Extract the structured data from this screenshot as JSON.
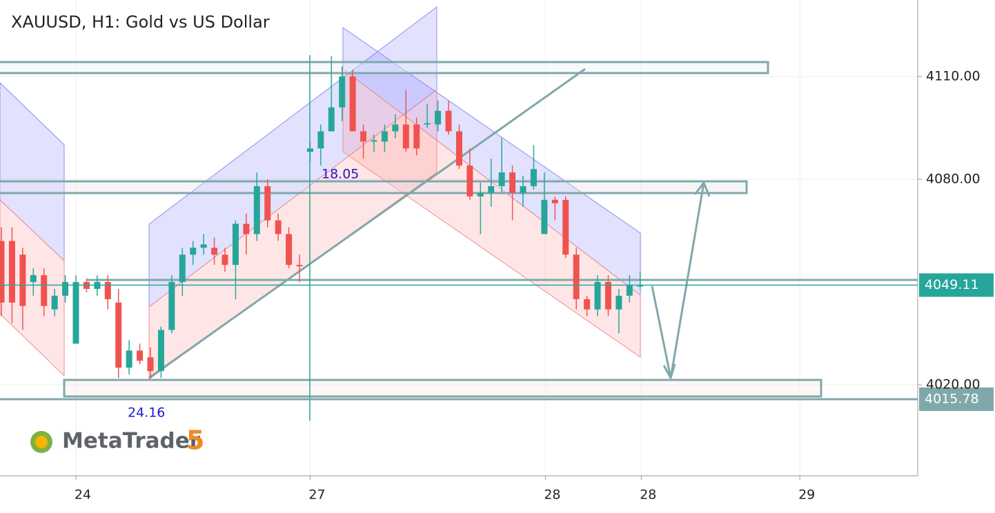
{
  "chart_data": {
    "type": "candlestick",
    "title": "XAUUSD, H1: Gold vs US Dollar",
    "open": [
      4062,
      4062,
      4058,
      4050,
      4052,
      4042,
      4046,
      4032,
      4050,
      4048,
      4050,
      4044,
      4025,
      4030,
      4028,
      4024,
      4036,
      4050,
      4058,
      4060,
      4060,
      4058,
      4055,
      4067,
      4064,
      4078,
      4068,
      4064,
      4055,
      4088,
      4089,
      4094,
      4101,
      4110,
      4094,
      4091,
      4091,
      4094,
      4096,
      4096,
      4096,
      4096,
      4100,
      4094,
      4084,
      4075,
      4076,
      4078,
      4082,
      4076,
      4078,
      4064,
      4074,
      4074,
      4058,
      4045,
      4042,
      4050,
      4042,
      4046,
      4049
    ],
    "high": [
      4066,
      4066,
      4060,
      4054,
      4054,
      4048,
      4052,
      4052,
      4051,
      4052,
      4052,
      4048,
      4033,
      4032,
      4031,
      4037,
      4052,
      4060,
      4062,
      4064,
      4063,
      4060,
      4068,
      4070,
      4082,
      4080,
      4070,
      4066,
      4058,
      4091,
      4096,
      4116,
      4113,
      4112,
      4096,
      4093,
      4096,
      4099,
      4106,
      4098,
      4102,
      4103,
      4103,
      4096,
      4089,
      4079,
      4086,
      4092,
      4084,
      4081,
      4090,
      4082,
      4075,
      4075,
      4060,
      4046,
      4052,
      4052,
      4048,
      4052,
      4053
    ],
    "low": [
      4040,
      4038,
      4036,
      4046,
      4040,
      4040,
      4044,
      4032,
      4047,
      4046,
      4042,
      4022,
      4023,
      4026,
      4022,
      4022,
      4035,
      4046,
      4055,
      4058,
      4055,
      4053,
      4045,
      4058,
      4062,
      4066,
      4062,
      4054,
      4050,
      4085,
      4084,
      4094,
      4097,
      4094,
      4086,
      4088,
      4088,
      4092,
      4088,
      4087,
      4095,
      4094,
      4093,
      4083,
      4074,
      4064,
      4072,
      4076,
      4068,
      4072,
      4077,
      4064,
      4068,
      4057,
      4042,
      4040,
      4040,
      4040,
      4035,
      4044,
      4048
    ],
    "close": [
      4044,
      4044,
      4043,
      4052,
      4043,
      4046,
      4050,
      4050,
      4048,
      4050,
      4045,
      4025,
      4030,
      4027,
      4024,
      4036,
      4050,
      4058,
      4060,
      4061,
      4058,
      4055,
      4067,
      4064,
      4078,
      4068,
      4064,
      4055,
      4054.6,
      4089,
      4094,
      4101,
      4110,
      4094,
      4091,
      4091.4,
      4094,
      4096,
      4089,
      4089,
      4096.4,
      4100,
      4094,
      4084,
      4075,
      4076,
      4078,
      4082,
      4076,
      4078,
      4083,
      4074,
      4073,
      4058,
      4045,
      4042,
      4050,
      4042,
      4046,
      4049,
      4049.1
    ],
    "up_color": "#26a69a",
    "down_color": "#ef5350",
    "ylim": [
      3993.43,
      4132.35
    ],
    "yticks": [
      {
        "value": 4020,
        "label": "4020.00"
      },
      {
        "value": 4080,
        "label": "4080.00"
      },
      {
        "value": 4110,
        "label": "4110.00"
      }
    ],
    "xlim": [
      -0.13,
      86.07
    ],
    "xticks": [
      {
        "value": 7.0,
        "label": "24"
      },
      {
        "value": 29.0,
        "label": "27"
      },
      {
        "value": 51.1,
        "label": "28"
      },
      {
        "value": 60.1,
        "label": "28"
      },
      {
        "value": 75.0,
        "label": "29"
      }
    ],
    "grid": true,
    "price_lines": [
      {
        "value": 4049.11,
        "color": "#26a69a"
      },
      {
        "value": 4015.78,
        "color": "#7fa8aa"
      }
    ],
    "annotations": [
      "18.05",
      "24.16"
    ]
  },
  "logo": {
    "name": "MetaTrader",
    "version": "5"
  }
}
